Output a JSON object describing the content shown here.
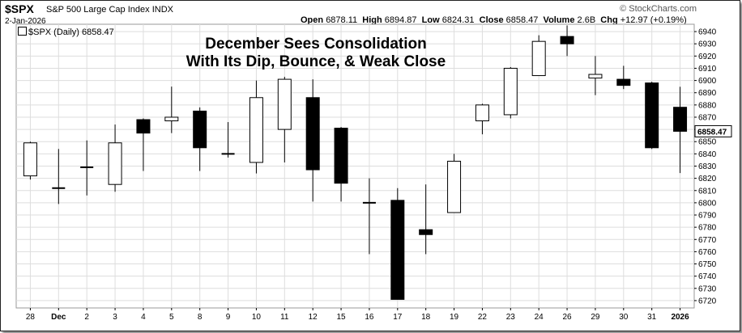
{
  "header": {
    "symbol": "$SPX",
    "name": "S&P 500 Large Cap Index",
    "exchange": "INDX",
    "date": "2-Jan-2026",
    "brand": "© StockCharts.com",
    "open_label": "Open",
    "open": "6878.11",
    "high_label": "High",
    "high": "6894.87",
    "low_label": "Low",
    "low": "6824.31",
    "close_label": "Close",
    "close": "6858.47",
    "volume_label": "Volume",
    "volume": "2.6B",
    "chg_label": "Chg",
    "chg": "+12.97 (+0.19%)"
  },
  "legend": {
    "label": "$SPX (Daily) 6858.47"
  },
  "annotation": {
    "line1": "December Sees Consolidation",
    "line2": "With Its Dip, Bounce, & Weak Close"
  },
  "colors": {
    "up_fill": "#ffffff",
    "down_fill": "#000000",
    "grid": "#dddddd",
    "last_box": "#000000"
  },
  "chart_data": {
    "type": "candlestick",
    "title": "December Sees Consolidation With Its Dip, Bounce, & Weak Close",
    "ylim": [
      6714,
      6946
    ],
    "y_ticks": [
      6720,
      6730,
      6740,
      6750,
      6760,
      6770,
      6780,
      6790,
      6800,
      6810,
      6820,
      6830,
      6840,
      6850,
      6860,
      6870,
      6880,
      6890,
      6900,
      6910,
      6920,
      6930,
      6940
    ],
    "last_value": "6858.47",
    "grid": true,
    "categories": [
      "28",
      "Dec",
      "2",
      "3",
      "4",
      "5",
      "8",
      "9",
      "10",
      "11",
      "12",
      "15",
      "16",
      "17",
      "18",
      "19",
      "22",
      "23",
      "24",
      "26",
      "29",
      "30",
      "31",
      "2026"
    ],
    "candles": [
      {
        "x": "28",
        "open": 6822,
        "high": 6850,
        "low": 6819,
        "close": 6849
      },
      {
        "x": "Dec",
        "open": 6812,
        "high": 6844,
        "low": 6799,
        "close": 6812
      },
      {
        "x": "2",
        "open": 6828,
        "high": 6851,
        "low": 6806,
        "close": 6829
      },
      {
        "x": "3",
        "open": 6815,
        "high": 6864,
        "low": 6809,
        "close": 6849
      },
      {
        "x": "4",
        "open": 6868,
        "high": 6869,
        "low": 6826,
        "close": 6857
      },
      {
        "x": "5",
        "open": 6867,
        "high": 6895,
        "low": 6857,
        "close": 6870
      },
      {
        "x": "8",
        "open": 6875,
        "high": 6878,
        "low": 6826,
        "close": 6845
      },
      {
        "x": "9",
        "open": 6840,
        "high": 6866,
        "low": 6837,
        "close": 6840
      },
      {
        "x": "10",
        "open": 6833,
        "high": 6900,
        "low": 6824,
        "close": 6886
      },
      {
        "x": "11",
        "open": 6860,
        "high": 6903,
        "low": 6833,
        "close": 6901
      },
      {
        "x": "12",
        "open": 6886,
        "high": 6901,
        "low": 6801,
        "close": 6827
      },
      {
        "x": "15",
        "open": 6861,
        "high": 6862,
        "low": 6801,
        "close": 6816
      },
      {
        "x": "16",
        "open": 6800,
        "high": 6820,
        "low": 6758,
        "close": 6800
      },
      {
        "x": "17",
        "open": 6802,
        "high": 6812,
        "low": 6721,
        "close": 6721
      },
      {
        "x": "18",
        "open": 6778,
        "high": 6815,
        "low": 6758,
        "close": 6774
      },
      {
        "x": "19",
        "open": 6792,
        "high": 6840,
        "low": 6792,
        "close": 6834
      },
      {
        "x": "22",
        "open": 6867,
        "high": 6881,
        "low": 6856,
        "close": 6880
      },
      {
        "x": "23",
        "open": 6872,
        "high": 6911,
        "low": 6869,
        "close": 6910
      },
      {
        "x": "24",
        "open": 6904,
        "high": 6937,
        "low": 6904,
        "close": 6932
      },
      {
        "x": "26",
        "open": 6936,
        "high": 6945,
        "low": 6920,
        "close": 6930
      },
      {
        "x": "29",
        "open": 6902,
        "high": 6920,
        "low": 6888,
        "close": 6905
      },
      {
        "x": "30",
        "open": 6901,
        "high": 6912,
        "low": 6893,
        "close": 6896
      },
      {
        "x": "31",
        "open": 6898,
        "high": 6899,
        "low": 6844,
        "close": 6845
      },
      {
        "x": "2026",
        "open": 6878.11,
        "high": 6894.87,
        "low": 6824.31,
        "close": 6858.47
      }
    ]
  }
}
